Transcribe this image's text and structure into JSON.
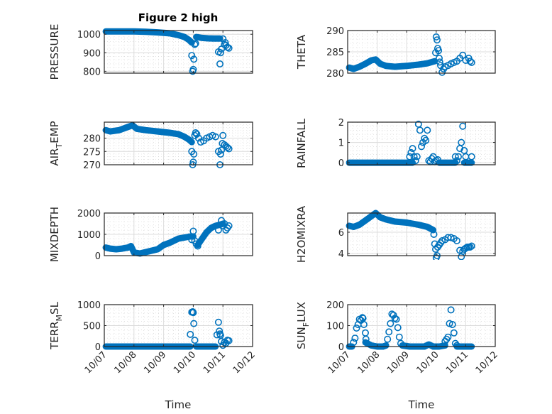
{
  "chart_data": {
    "type": "scatter",
    "title": "Figure 2 high",
    "marker": "circle-open",
    "series_color": "#0072BD",
    "grid": "major-and-minor",
    "x_axis": {
      "label": "Time",
      "ticks": [
        "10/07",
        "10/08",
        "10/09",
        "10/10",
        "10/11",
        "10/12"
      ],
      "range_days": [
        0,
        5
      ],
      "tick_rotation_deg": 45
    },
    "panels": [
      {
        "id": "pressure",
        "ylabel": "PRESSURE",
        "ylabel_main": "PRESSURE",
        "ylabel_sub": "",
        "ylabel_rest": "",
        "ylabel_sup": "",
        "ylim": [
          790,
          1020
        ],
        "yticks": [
          800,
          900,
          1000
        ],
        "segments": [
          {
            "x": [
              0.05,
              0.3,
              0.6,
              1.0,
              1.4,
              1.8,
              2.2,
              2.5,
              2.7,
              2.85,
              2.95
            ],
            "y": [
              1015,
              1015,
              1015,
              1015,
              1013,
              1010,
              1005,
              995,
              985,
              970,
              955
            ]
          },
          {
            "x": [
              3.1,
              3.3,
              3.5,
              3.7,
              3.9
            ],
            "y": [
              985,
              980,
              978,
              977,
              977
            ]
          }
        ],
        "points": {
          "x": [
            2.95,
            2.98,
            3.0,
            3.02,
            3.05,
            3.08,
            3.85,
            3.9,
            3.92,
            3.95,
            4.0,
            4.05,
            4.08,
            4.1,
            4.15,
            4.2
          ],
          "y": [
            885,
            800,
            810,
            865,
            945,
            950,
            905,
            840,
            900,
            920,
            975,
            945,
            955,
            940,
            930,
            925
          ]
        }
      },
      {
        "id": "theta",
        "ylabel": "THETA",
        "ylabel_main": "THETA",
        "ylabel_sub": "",
        "ylabel_rest": "",
        "ylabel_sup": "",
        "ylim": [
          280,
          290
        ],
        "yticks": [
          280,
          285,
          290
        ],
        "segments": [
          {
            "x": [
              0.05,
              0.2,
              0.4,
              0.6,
              0.8,
              0.95,
              1.1,
              1.3,
              1.6,
              2.0,
              2.4,
              2.7,
              2.95
            ],
            "y": [
              281.3,
              281.0,
              281.5,
              282.2,
              283.0,
              283.2,
              282.2,
              281.7,
              281.5,
              281.7,
              282.0,
              282.3,
              282.8
            ]
          }
        ],
        "points": {
          "x": [
            2.98,
            3.0,
            3.03,
            3.05,
            3.08,
            3.1,
            3.12,
            3.15,
            3.2,
            3.25,
            3.3,
            3.4,
            3.5,
            3.6,
            3.7,
            3.8,
            3.9,
            4.0,
            4.1,
            4.15,
            4.2
          ],
          "y": [
            284.8,
            288.5,
            287.8,
            285.8,
            285.3,
            283.5,
            282.6,
            281.8,
            280.2,
            281.0,
            281.5,
            281.8,
            282.2,
            282.5,
            282.8,
            283.5,
            284.2,
            283.0,
            283.5,
            282.8,
            282.5
          ]
        }
      },
      {
        "id": "air_temp",
        "ylabel": "AIR_TEMP",
        "ylabel_main": "AIR",
        "ylabel_sub": "T",
        "ylabel_rest": "EMP",
        "ylabel_sup": "",
        "ylim": [
          270,
          286
        ],
        "yticks": [
          270,
          275,
          280
        ],
        "segments": [
          {
            "x": [
              0.05,
              0.2,
              0.5,
              0.75,
              0.95,
              1.1,
              1.4,
              1.8,
              2.2,
              2.5,
              2.7,
              2.85,
              2.95
            ],
            "y": [
              283.0,
              282.5,
              283.0,
              284.0,
              284.8,
              283.5,
              283.0,
              282.5,
              282.0,
              281.5,
              280.5,
              279.5,
              278.5
            ]
          }
        ],
        "points": {
          "x": [
            2.95,
            2.98,
            3.0,
            3.02,
            3.05,
            3.08,
            3.12,
            3.18,
            3.25,
            3.35,
            3.45,
            3.55,
            3.65,
            3.75,
            3.85,
            3.9,
            3.92,
            3.95,
            3.98,
            4.0,
            4.05,
            4.1,
            4.15,
            4.2
          ],
          "y": [
            275,
            270,
            271,
            274,
            281,
            282,
            281.5,
            280,
            278.5,
            279,
            280,
            280.5,
            281,
            280.5,
            275,
            270,
            274,
            275.5,
            278,
            281,
            277.5,
            277,
            276.5,
            276
          ]
        }
      },
      {
        "id": "rainfall",
        "ylabel": "RAINFALL",
        "ylabel_main": "RAINFALL",
        "ylabel_sub": "",
        "ylabel_rest": "",
        "ylabel_sup": "",
        "ylim": [
          -0.1,
          2
        ],
        "yticks": [
          0,
          1,
          2
        ],
        "segments": [
          {
            "x": [
              0.05,
              0.5,
              1.0,
              1.5,
              2.0,
              2.2
            ],
            "y": [
              0,
              0,
              0,
              0,
              0,
              0
            ]
          },
          {
            "x": [
              3.1,
              3.3,
              3.5,
              3.65
            ],
            "y": [
              0,
              0,
              0,
              0
            ]
          },
          {
            "x": [
              3.95,
              4.1,
              4.2
            ],
            "y": [
              0,
              0,
              0
            ]
          }
        ],
        "points": {
          "x": [
            2.1,
            2.15,
            2.2,
            2.25,
            2.3,
            2.35,
            2.4,
            2.45,
            2.5,
            2.55,
            2.6,
            2.65,
            2.7,
            2.75,
            2.8,
            2.85,
            2.9,
            2.95,
            3.0,
            3.05,
            3.65,
            3.7,
            3.75,
            3.8,
            3.85,
            3.9,
            3.95,
            4.0,
            4.2
          ],
          "y": [
            0.3,
            0.5,
            0.7,
            0.3,
            0.1,
            0.3,
            1.9,
            1.6,
            0.8,
            1.0,
            1.2,
            1.1,
            1.6,
            0.1,
            0.05,
            0.2,
            0.3,
            0.05,
            0.1,
            0.15,
            0.3,
            0.1,
            0.3,
            0.7,
            1.0,
            1.8,
            0.6,
            0.3,
            0.3
          ]
        }
      },
      {
        "id": "mixdepth",
        "ylabel": "MIXDEPTH",
        "ylabel_main": "MIXDEPTH",
        "ylabel_sub": "",
        "ylabel_rest": "",
        "ylabel_sup": "",
        "ylim": [
          0,
          2000
        ],
        "yticks": [
          0,
          1000,
          2000
        ],
        "segments": [
          {
            "x": [
              0.05,
              0.2,
              0.4,
              0.6,
              0.8,
              0.9,
              1.0,
              1.2,
              1.5,
              1.8,
              2.0,
              2.2,
              2.5,
              2.7,
              2.9,
              3.0
            ],
            "y": [
              380,
              330,
              300,
              330,
              380,
              450,
              150,
              100,
              200,
              300,
              500,
              600,
              800,
              850,
              900,
              900
            ]
          },
          {
            "x": [
              3.15,
              3.3,
              3.45,
              3.6,
              3.75,
              3.9,
              4.0
            ],
            "y": [
              500,
              800,
              1100,
              1300,
              1400,
              1450,
              1500
            ]
          }
        ],
        "points": {
          "x": [
            2.95,
            3.0,
            3.05,
            3.1,
            3.15,
            3.85,
            3.95,
            4.0,
            4.05,
            4.1,
            4.15,
            4.2
          ],
          "y": [
            750,
            1150,
            700,
            550,
            450,
            1200,
            1650,
            1400,
            1500,
            1200,
            1300,
            1400
          ]
        }
      },
      {
        "id": "h2omixra",
        "ylabel": "H2OMIXRA",
        "ylabel_main": "H2OMIXRA",
        "ylabel_sub": "",
        "ylabel_rest": "",
        "ylabel_sup": "",
        "ylim": [
          3.8,
          7.8
        ],
        "yticks": [
          4,
          6
        ],
        "segments": [
          {
            "x": [
              0.05,
              0.2,
              0.4,
              0.6,
              0.8,
              0.95,
              1.1,
              1.3,
              1.6,
              2.0,
              2.4,
              2.7,
              2.9
            ],
            "y": [
              6.6,
              6.5,
              6.7,
              7.1,
              7.5,
              7.8,
              7.4,
              7.2,
              7.0,
              6.9,
              6.7,
              6.5,
              6.2
            ]
          }
        ],
        "points": {
          "x": [
            2.92,
            2.95,
            2.98,
            3.0,
            3.03,
            3.05,
            3.1,
            3.15,
            3.2,
            3.3,
            3.4,
            3.5,
            3.6,
            3.7,
            3.8,
            3.85,
            3.9,
            3.95,
            4.0,
            4.05,
            4.1,
            4.15,
            4.2
          ],
          "y": [
            5.8,
            4.9,
            4.4,
            3.6,
            3.8,
            4.6,
            4.8,
            5.0,
            5.2,
            5.3,
            5.5,
            5.5,
            5.4,
            5.2,
            4.3,
            3.7,
            4.2,
            4.4,
            4.5,
            4.6,
            4.6,
            4.6,
            4.7
          ]
        }
      },
      {
        "id": "terr_msl",
        "ylabel": "TERR_MSL",
        "ylabel_main": "TERR",
        "ylabel_sub": "M",
        "ylabel_rest": "SL",
        "ylabel_sup": "",
        "ylim": [
          0,
          1000
        ],
        "yticks": [
          0,
          500,
          1000
        ],
        "segments": [
          {
            "x": [
              0.05,
              0.5,
              1.0,
              1.5,
              2.0,
              2.5,
              2.9
            ],
            "y": [
              0,
              0,
              0,
              0,
              0,
              0,
              0
            ]
          },
          {
            "x": [
              3.1,
              3.3,
              3.5,
              3.75
            ],
            "y": [
              0,
              0,
              0,
              0
            ]
          }
        ],
        "points": {
          "x": [
            2.9,
            2.95,
            2.98,
            3.0,
            3.02,
            3.05,
            3.8,
            3.85,
            3.88,
            3.9,
            3.92,
            3.95,
            4.0,
            4.05,
            4.1,
            4.15,
            4.2
          ],
          "y": [
            290,
            820,
            830,
            810,
            550,
            150,
            280,
            580,
            370,
            300,
            270,
            120,
            30,
            100,
            80,
            150,
            140
          ]
        }
      },
      {
        "id": "sun_flux",
        "ylabel": "SUN_FLUX",
        "ylabel_main": "SUN",
        "ylabel_sub": "F",
        "ylabel_rest": "LUX",
        "ylabel_sup": "",
        "ylim": [
          0,
          200
        ],
        "yticks": [
          0,
          100,
          200
        ],
        "segments": [
          {
            "x": [
              0.05,
              0.15
            ],
            "y": [
              0,
              0
            ]
          },
          {
            "x": [
              0.6,
              0.8,
              1.0,
              1.2,
              1.3
            ],
            "y": [
              20,
              5,
              0,
              0,
              5
            ]
          },
          {
            "x": [
              1.85,
              2.1,
              2.4,
              2.6,
              2.75,
              2.9,
              3.1,
              3.3
            ],
            "y": [
              5,
              0,
              0,
              0,
              10,
              0,
              0,
              5
            ]
          },
          {
            "x": [
              3.7,
              3.9,
              4.1,
              4.2
            ],
            "y": [
              0,
              0,
              0,
              0
            ]
          }
        ],
        "points": {
          "x": [
            0.2,
            0.25,
            0.3,
            0.35,
            0.4,
            0.45,
            0.5,
            0.52,
            0.55,
            0.6,
            0.62,
            1.35,
            1.4,
            1.45,
            1.5,
            1.55,
            1.6,
            1.65,
            1.7,
            1.75,
            1.8,
            3.3,
            3.35,
            3.4,
            3.45,
            3.5,
            3.55,
            3.6,
            3.65,
            3.7
          ],
          "y": [
            20,
            40,
            88,
            105,
            130,
            125,
            138,
            135,
            105,
            65,
            35,
            35,
            70,
            110,
            155,
            150,
            135,
            130,
            90,
            45,
            15,
            25,
            35,
            45,
            110,
            175,
            105,
            65,
            15,
            5
          ]
        }
      }
    ]
  }
}
